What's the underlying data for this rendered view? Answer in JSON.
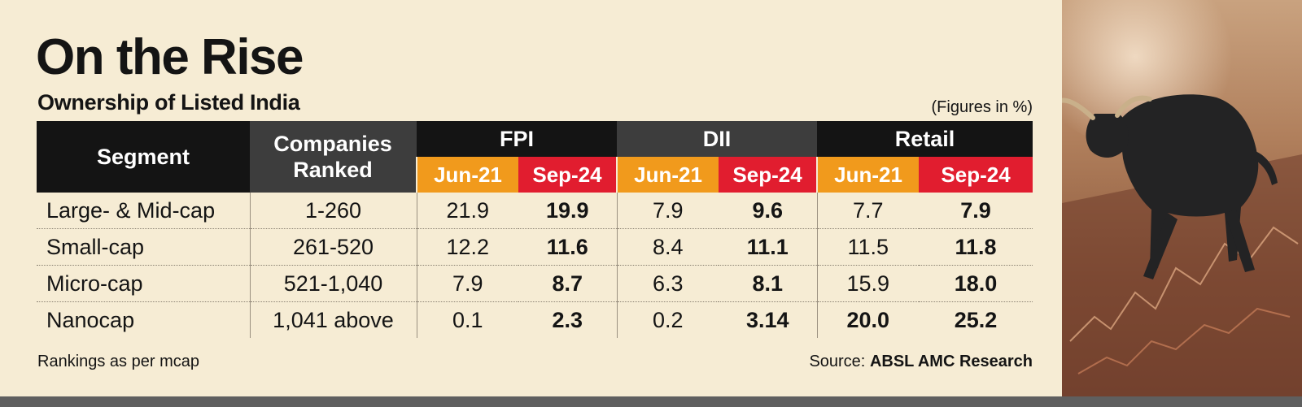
{
  "title": "On the Rise",
  "subtitle": "Ownership of Listed India",
  "units_note": "(Figures in %)",
  "headers": {
    "segment": "Segment",
    "companies_ranked": "Companies Ranked",
    "groups": [
      "FPI",
      "DII",
      "Retail"
    ],
    "periods": [
      "Jun-21",
      "Sep-24",
      "Jun-21",
      "Sep-24",
      "Jun-21",
      "Sep-24"
    ]
  },
  "rows": [
    {
      "segment": "Large- & Mid-cap",
      "ranked": "1-260",
      "fpi_jun21": "21.9",
      "fpi_sep24": "19.9",
      "dii_jun21": "7.9",
      "dii_sep24": "9.6",
      "retail_jun21": "7.7",
      "retail_sep24": "7.9"
    },
    {
      "segment": "Small-cap",
      "ranked": "261-520",
      "fpi_jun21": "12.2",
      "fpi_sep24": "11.6",
      "dii_jun21": "8.4",
      "dii_sep24": "11.1",
      "retail_jun21": "11.5",
      "retail_sep24": "11.8"
    },
    {
      "segment": "Micro-cap",
      "ranked": "521-1,040",
      "fpi_jun21": "7.9",
      "fpi_sep24": "8.7",
      "dii_jun21": "6.3",
      "dii_sep24": "8.1",
      "retail_jun21": "15.9",
      "retail_sep24": "18.0"
    },
    {
      "segment": "Nanocap",
      "ranked": "1,041 above",
      "fpi_jun21": "0.1",
      "fpi_sep24": "2.3",
      "dii_jun21": "0.2",
      "dii_sep24": "3.14",
      "retail_jun21": "20.0",
      "retail_sep24": "25.2"
    }
  ],
  "footnote": "Rankings as per mcap",
  "source_label": "Source:",
  "source_name": "ABSL AMC Research",
  "colors": {
    "background": "#f6ecd4",
    "header_dark": "#141414",
    "header_grey": "#3d3d3d",
    "jun_orange": "#f19a1c",
    "sep_red": "#e11d2f"
  },
  "image": {
    "icon": "bull-figurine-photo"
  }
}
